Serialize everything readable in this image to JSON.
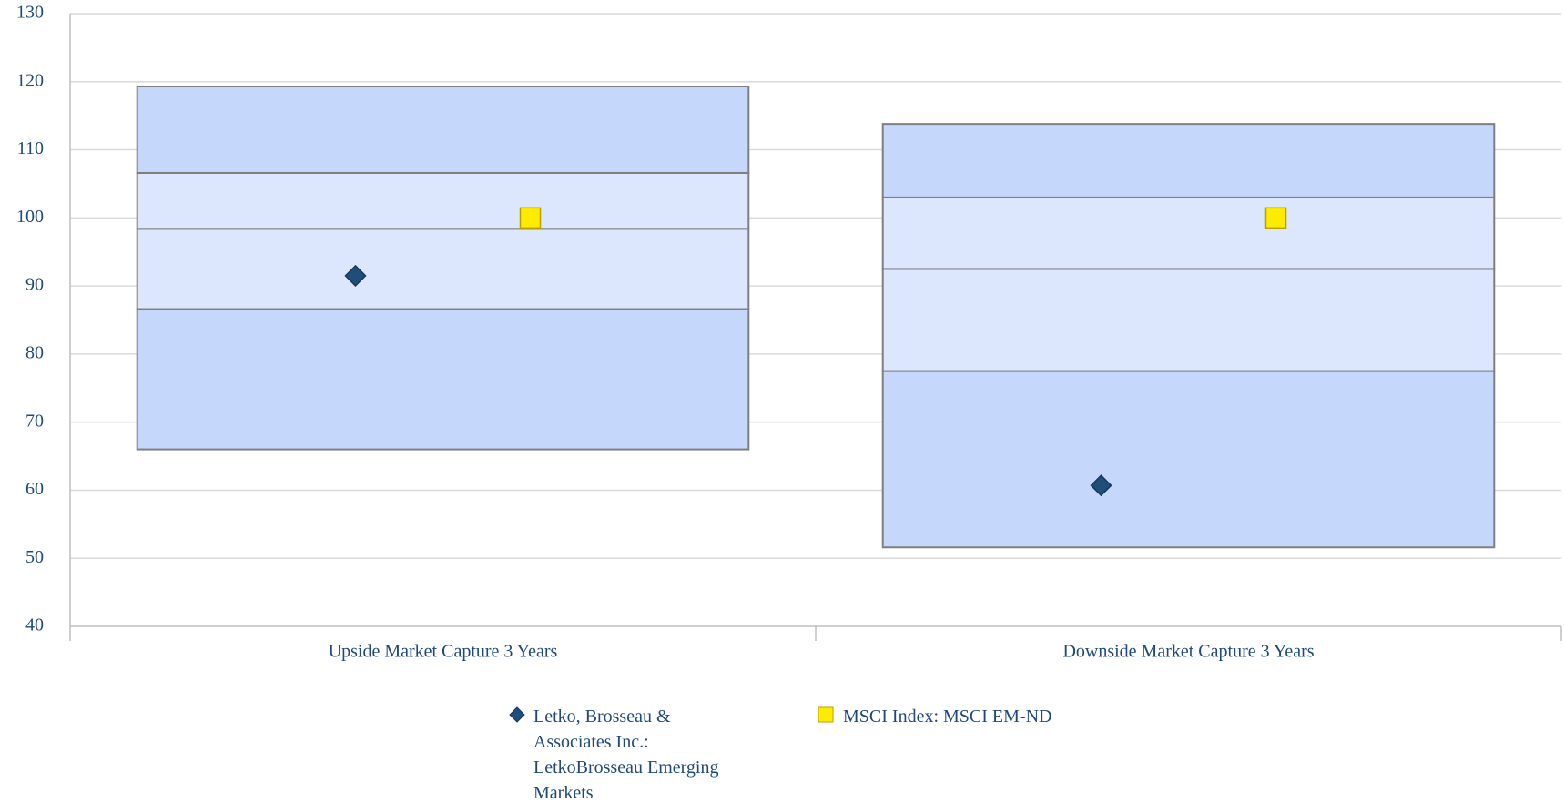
{
  "chart_data": {
    "type": "box",
    "categories": [
      "Upside Market Capture 3 Years",
      "Downside Market Capture 3 Years"
    ],
    "box_values": [
      [
        66.0,
        86.6,
        98.4,
        106.6,
        119.3
      ],
      [
        51.6,
        77.5,
        92.5,
        103.0,
        113.8
      ]
    ],
    "box_colors": [
      "#c5d7fb",
      "#dce6fd",
      "#dce6fd",
      "#c5d7fb"
    ],
    "series": [
      {
        "name": "Letko, Brosseau & Associates Inc.: LetkoBrosseau Emerging Markets",
        "color": "#1f4e79",
        "marker": "diamond",
        "values": [
          91.5,
          60.7
        ]
      },
      {
        "name": "MSCI Index: MSCI EM-ND",
        "color": "#ffeb00",
        "marker": "square",
        "values": [
          100,
          100
        ]
      }
    ],
    "ylim": [
      40,
      130
    ],
    "yticks": [
      40,
      50,
      60,
      70,
      80,
      90,
      100,
      110,
      120,
      130
    ],
    "grid": true
  }
}
